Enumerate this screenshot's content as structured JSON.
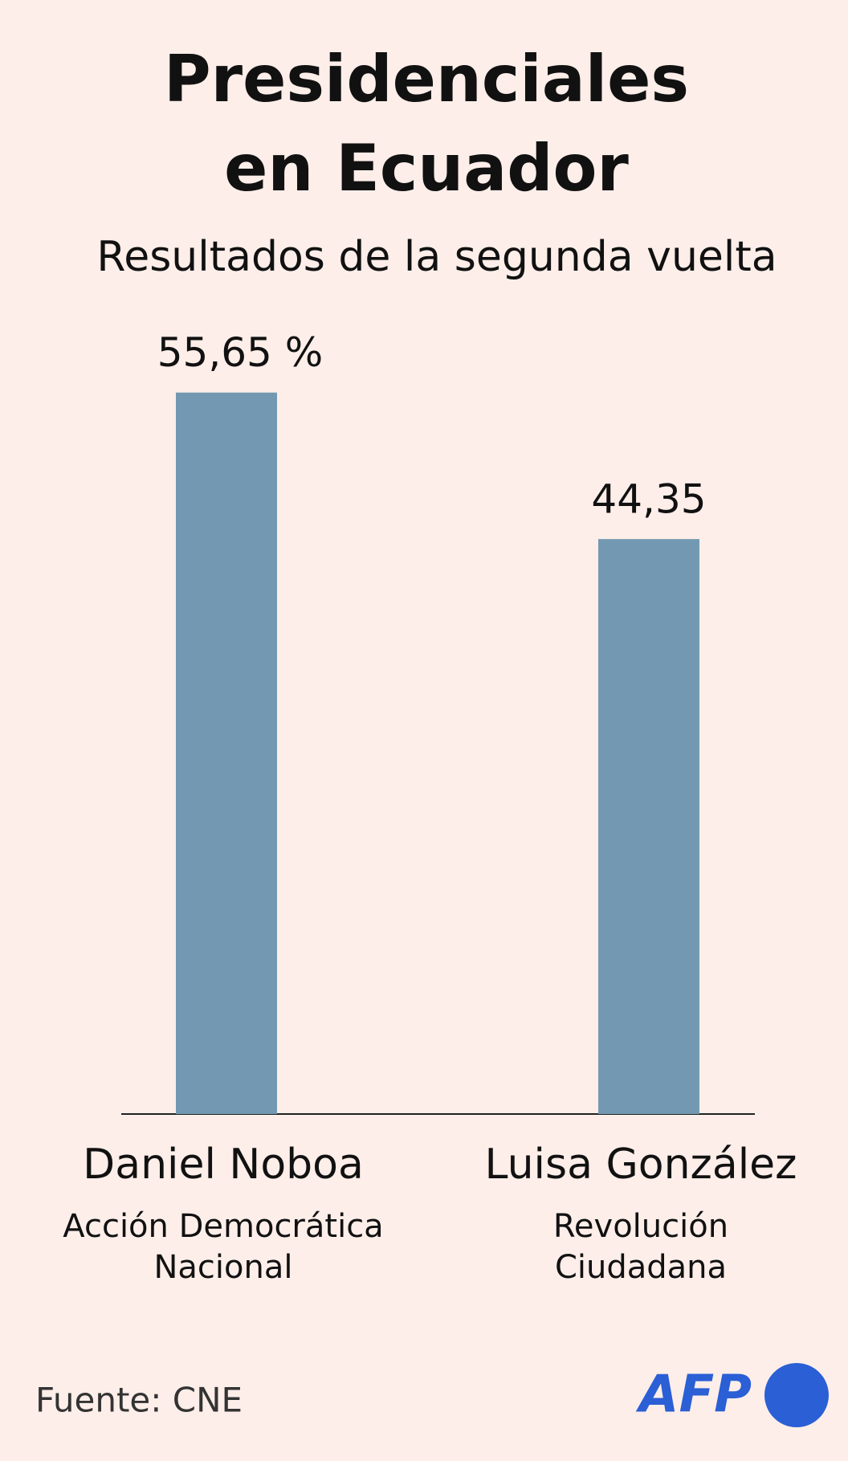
{
  "chart_data": {
    "type": "bar",
    "title": [
      "Presidenciales",
      "en Ecuador"
    ],
    "subtitle": "Resultados de la segunda vuelta",
    "categories": [
      "Daniel Noboa",
      "Luisa González"
    ],
    "subcategories": [
      [
        "Acción Democrática",
        "Nacional"
      ],
      [
        "Revolución",
        "Ciudadana"
      ]
    ],
    "values": [
      55.65,
      44.35
    ],
    "value_labels": [
      "55,65 %",
      "44,35"
    ],
    "color": "#7399b2",
    "source": "Fuente: CNE",
    "logo": "AFP"
  }
}
